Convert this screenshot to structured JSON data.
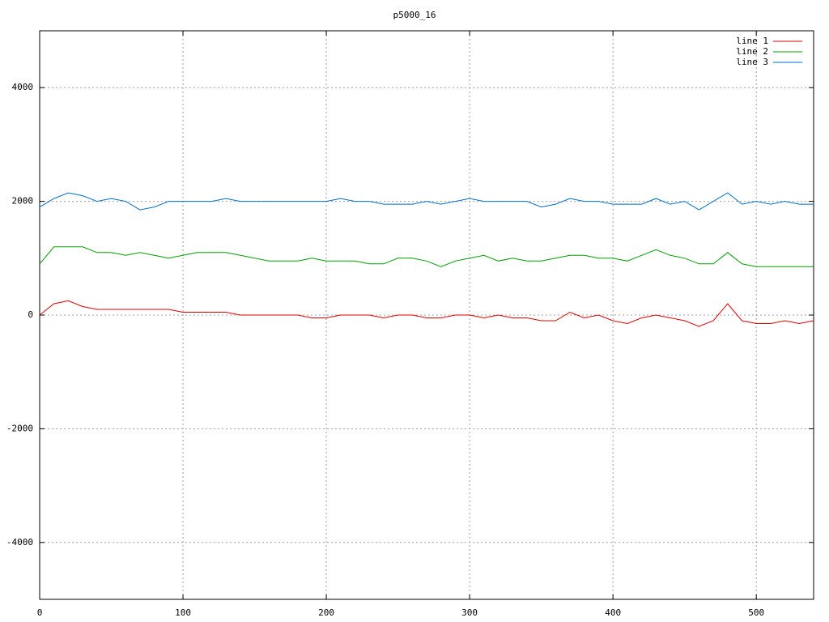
{
  "chart_data": {
    "type": "line",
    "title": "p5000_16",
    "x": [
      0,
      10,
      20,
      30,
      40,
      50,
      60,
      70,
      80,
      90,
      100,
      110,
      120,
      130,
      140,
      150,
      160,
      170,
      180,
      190,
      200,
      210,
      220,
      230,
      240,
      250,
      260,
      270,
      280,
      290,
      300,
      310,
      320,
      330,
      340,
      350,
      360,
      370,
      380,
      390,
      400,
      410,
      420,
      430,
      440,
      450,
      460,
      470,
      480,
      490,
      500,
      510,
      520,
      530,
      540
    ],
    "series": [
      {
        "name": "line 1",
        "color": "#e00000",
        "values": [
          0,
          200,
          250,
          150,
          100,
          100,
          100,
          100,
          100,
          100,
          50,
          50,
          50,
          50,
          0,
          0,
          0,
          0,
          0,
          -50,
          -50,
          0,
          0,
          0,
          -50,
          0,
          0,
          -50,
          -50,
          0,
          0,
          -50,
          0,
          -50,
          -50,
          -100,
          -100,
          50,
          -50,
          0,
          -100,
          -150,
          -50,
          0,
          -50,
          -100,
          -200,
          -100,
          200,
          -100,
          -150,
          -150,
          -100,
          -150,
          -100
        ]
      },
      {
        "name": "line 2",
        "color": "#00a000",
        "values": [
          900,
          1200,
          1200,
          1200,
          1100,
          1100,
          1050,
          1100,
          1050,
          1000,
          1050,
          1100,
          1100,
          1100,
          1050,
          1000,
          950,
          950,
          950,
          1000,
          950,
          950,
          950,
          900,
          900,
          1000,
          1000,
          950,
          850,
          950,
          1000,
          1050,
          950,
          1000,
          950,
          950,
          1000,
          1050,
          1050,
          1000,
          1000,
          950,
          1050,
          1150,
          1050,
          1000,
          900,
          900,
          1100,
          900,
          850,
          850,
          850,
          850,
          850
        ]
      },
      {
        "name": "line 3",
        "color": "#0070c8",
        "values": [
          1900,
          2050,
          2150,
          2100,
          2000,
          2050,
          2000,
          1850,
          1900,
          2000,
          2000,
          2000,
          2000,
          2050,
          2000,
          2000,
          2000,
          2000,
          2000,
          2000,
          2000,
          2050,
          2000,
          2000,
          1950,
          1950,
          1950,
          2000,
          1950,
          2000,
          2050,
          2000,
          2000,
          2000,
          2000,
          1900,
          1950,
          2050,
          2000,
          2000,
          1950,
          1950,
          1950,
          2050,
          1950,
          2000,
          1850,
          2000,
          2150,
          1950,
          2000,
          1950,
          2000,
          1950,
          1950
        ]
      }
    ],
    "xlim": [
      0,
      540
    ],
    "ylim": [
      -5000,
      5000
    ],
    "xticks": [
      0,
      100,
      200,
      300,
      400,
      500
    ],
    "yticks": [
      -4000,
      -2000,
      0,
      2000,
      4000
    ],
    "grid": true,
    "legend": "top-right"
  }
}
